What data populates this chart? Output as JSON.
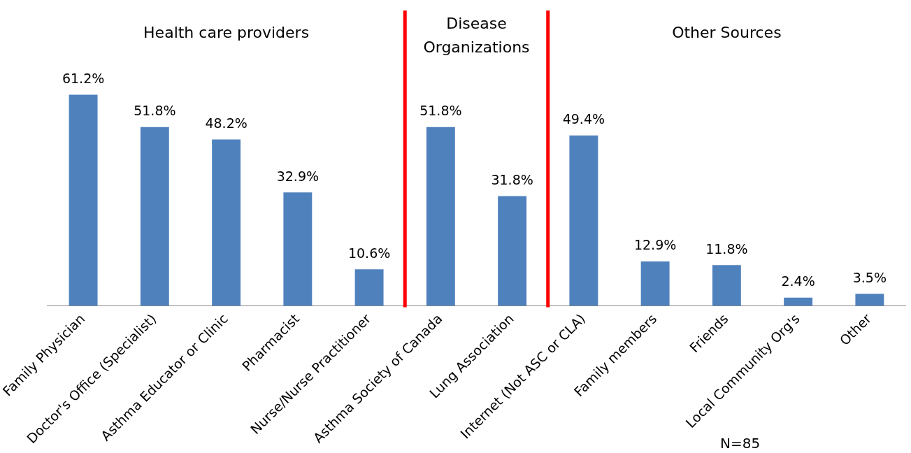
{
  "chart_data": {
    "type": "bar",
    "categories": [
      "Family Physician",
      "Doctor's Office (Specialist)",
      "Asthma Educator or Clinic",
      "Pharmacist",
      "Nurse/Nurse Practitioner",
      "Asthma Society of Canada",
      "Lung Association",
      "Internet (Not ASC or CLA)",
      "Family members",
      "Friends",
      "Local Community Org's",
      "Other"
    ],
    "values": [
      61.2,
      51.8,
      48.2,
      32.9,
      10.6,
      51.8,
      31.8,
      49.4,
      12.9,
      11.8,
      2.4,
      3.5
    ],
    "value_labels": [
      "61.2%",
      "51.8%",
      "48.2%",
      "32.9%",
      "10.6%",
      "51.8%",
      "31.8%",
      "49.4%",
      "12.9%",
      "11.8%",
      "2.4%",
      "3.5%"
    ],
    "color": "#4f81bd",
    "annotations": [
      "Health care providers",
      "Disease Organizations",
      "Other Sources",
      "N=85"
    ],
    "grid": false,
    "legend": false
  }
}
